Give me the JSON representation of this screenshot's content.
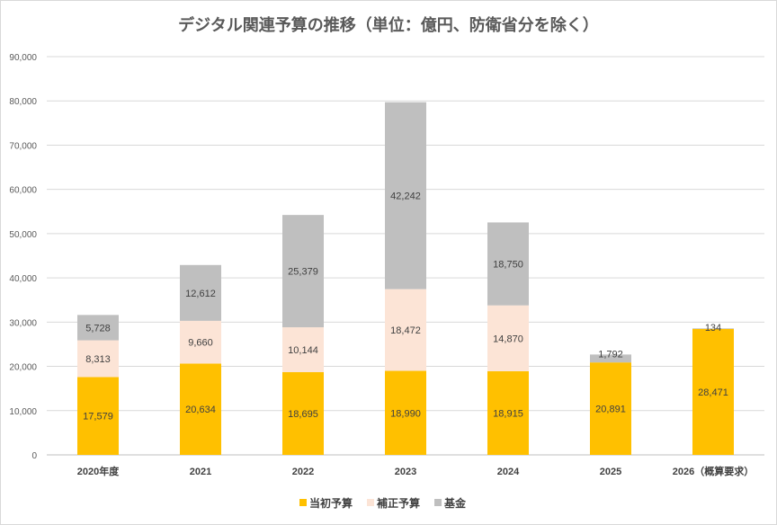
{
  "chart_data": {
    "type": "bar",
    "stacked": true,
    "title": "デジタル関連予算の推移（単位：億円、防衛省分を除く）",
    "categories": [
      "2020年度",
      "2021",
      "2022",
      "2023",
      "2024",
      "2025",
      "2026（概算要求）"
    ],
    "series": [
      {
        "name": "当初予算",
        "color": "#FFC000",
        "values": [
          17579,
          20634,
          18695,
          18990,
          18915,
          20891,
          28471
        ]
      },
      {
        "name": "補正予算",
        "color": "#FCE4D6",
        "values": [
          8313,
          9660,
          10144,
          18472,
          14870,
          null,
          null
        ]
      },
      {
        "name": "基金",
        "color": "#BFBFBF",
        "values": [
          5728,
          12612,
          25379,
          42242,
          18750,
          1792,
          134
        ]
      }
    ],
    "ylim": [
      0,
      90000
    ],
    "yticks": [
      "0",
      "10,000",
      "20,000",
      "30,000",
      "40,000",
      "50,000",
      "60,000",
      "70,000",
      "80,000",
      "90,000"
    ],
    "grid": true,
    "legend": "bottom"
  }
}
